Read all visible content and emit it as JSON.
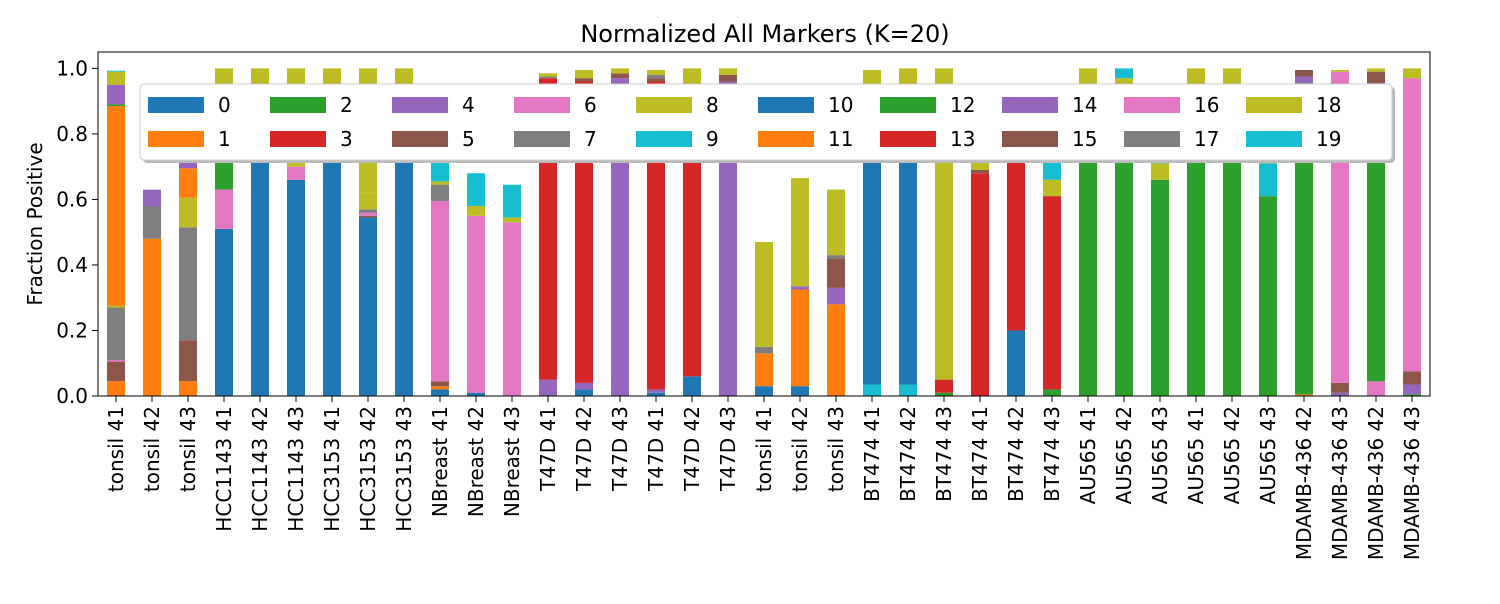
{
  "chart_data": {
    "type": "bar",
    "stacked": true,
    "title": "Normalized All Markers (K=20)",
    "xlabel": "",
    "ylabel": "Fraction Positive",
    "ylim": [
      0,
      1.05
    ],
    "yticks": [
      "0.0",
      "0.2",
      "0.4",
      "0.6",
      "0.8",
      "1.0"
    ],
    "grid": false,
    "legend": {
      "placement": "top-center",
      "columns": 10
    },
    "categories": [
      "tonsil 41",
      "tonsil 42",
      "tonsil 43",
      "HCC1143 41",
      "HCC1143 42",
      "HCC1143 43",
      "HCC3153 41",
      "HCC3153 42",
      "HCC3153 43",
      "NBreast 41",
      "NBreast 42",
      "NBreast 43",
      "T47D 41",
      "T47D 42",
      "T47D 43",
      "T47D 41",
      "T47D 42",
      "T47D 43",
      "tonsil 41",
      "tonsil 42",
      "tonsil 43",
      "BT474 41",
      "BT474 42",
      "BT474 43",
      "BT474 41",
      "BT474 42",
      "BT474 43",
      "AU565 41",
      "AU565 42",
      "AU565 43",
      "AU565 41",
      "AU565 42",
      "AU565 43",
      "MDAMB-436 42",
      "MDAMB-436 43",
      "MDAMB-436 42",
      "MDAMB-436 43"
    ],
    "series": [
      {
        "name": "0",
        "color": "#1f77b4",
        "values": [
          0,
          0,
          0,
          0.51,
          0.95,
          0.66,
          0.95,
          0.545,
          0.95,
          0.02,
          0.01,
          0,
          0,
          0.02,
          0,
          0.01,
          0.06,
          0,
          0,
          0,
          0,
          0,
          0,
          0,
          0,
          0,
          0,
          0,
          0,
          0,
          0,
          0,
          0,
          0,
          0,
          0,
          0
        ]
      },
      {
        "name": "1",
        "color": "#ff7f0e",
        "values": [
          0.045,
          0.48,
          0.045,
          0,
          0,
          0,
          0,
          0,
          0,
          0.01,
          0,
          0,
          0,
          0,
          0,
          0,
          0,
          0,
          0,
          0,
          0.28,
          0,
          0,
          0,
          0,
          0,
          0,
          0,
          0,
          0,
          0,
          0,
          0,
          0.005,
          0,
          0,
          0
        ]
      },
      {
        "name": "2",
        "color": "#2ca02c",
        "values": [
          0,
          0,
          0,
          0,
          0,
          0,
          0,
          0,
          0,
          0,
          0,
          0,
          0,
          0,
          0,
          0,
          0,
          0,
          0,
          0,
          0,
          0,
          0,
          0.01,
          0,
          0,
          0.02,
          0.95,
          0.95,
          0.66,
          0.95,
          0.95,
          0.61,
          0.95,
          0,
          0,
          0
        ]
      },
      {
        "name": "3",
        "color": "#d62728",
        "values": [
          0,
          0,
          0,
          0,
          0,
          0,
          0,
          0,
          0,
          0,
          0,
          0,
          0,
          0,
          0,
          0,
          0,
          0,
          0,
          0,
          0,
          0,
          0,
          0,
          0,
          0,
          0,
          0,
          0,
          0,
          0,
          0,
          0,
          0,
          0,
          0,
          0
        ]
      },
      {
        "name": "4",
        "color": "#9467bd",
        "values": [
          0,
          0,
          0,
          0,
          0,
          0,
          0,
          0,
          0,
          0,
          0,
          0,
          0.05,
          0.02,
          0.95,
          0.01,
          0,
          0.95,
          0,
          0,
          0,
          0,
          0,
          0,
          0,
          0,
          0,
          0,
          0,
          0,
          0,
          0,
          0,
          0,
          0,
          0,
          0
        ]
      },
      {
        "name": "5",
        "color": "#8c564b",
        "values": [
          0.06,
          0,
          0.125,
          0,
          0,
          0,
          0,
          0.005,
          0,
          0.015,
          0,
          0,
          0,
          0,
          0,
          0,
          0,
          0,
          0,
          0,
          0,
          0,
          0,
          0,
          0,
          0,
          0,
          0,
          0,
          0,
          0,
          0,
          0,
          0,
          0,
          0,
          0
        ]
      },
      {
        "name": "6",
        "color": "#e377c2",
        "values": [
          0.005,
          0,
          0,
          0.12,
          0,
          0.04,
          0,
          0.01,
          0,
          0.55,
          0.54,
          0.53,
          0,
          0,
          0,
          0,
          0,
          0,
          0,
          0,
          0,
          0,
          0,
          0,
          0,
          0,
          0,
          0,
          0,
          0,
          0,
          0,
          0,
          0,
          0,
          0.045,
          0
        ]
      },
      {
        "name": "7",
        "color": "#7f7f7f",
        "values": [
          0.16,
          0.1,
          0.345,
          0,
          0,
          0,
          0,
          0.01,
          0,
          0.05,
          0,
          0,
          0,
          0,
          0,
          0,
          0,
          0,
          0,
          0,
          0,
          0,
          0,
          0,
          0,
          0,
          0,
          0,
          0,
          0,
          0,
          0,
          0,
          0,
          0,
          0,
          0
        ]
      },
      {
        "name": "8",
        "color": "#bcbd22",
        "values": [
          0.005,
          0,
          0.09,
          0,
          0,
          0,
          0,
          0.05,
          0,
          0.01,
          0.03,
          0.015,
          0,
          0,
          0,
          0,
          0,
          0,
          0,
          0,
          0,
          0,
          0,
          0,
          0,
          0,
          0,
          0,
          0,
          0,
          0,
          0,
          0,
          0,
          0,
          0,
          0
        ]
      },
      {
        "name": "9",
        "color": "#17becf",
        "values": [
          0,
          0,
          0,
          0,
          0,
          0,
          0,
          0,
          0,
          0.1,
          0.1,
          0.1,
          0,
          0,
          0,
          0,
          0,
          0,
          0,
          0,
          0,
          0.035,
          0.035,
          0,
          0,
          0,
          0,
          0,
          0,
          0,
          0,
          0,
          0.1,
          0,
          0,
          0,
          0
        ]
      },
      {
        "name": "10",
        "color": "#1f77b4",
        "values": [
          0,
          0,
          0,
          0,
          0,
          0,
          0,
          0,
          0,
          0,
          0,
          0,
          0,
          0,
          0,
          0,
          0,
          0,
          0.03,
          0.03,
          0,
          0.86,
          0.87,
          0,
          0,
          0.2,
          0,
          0,
          0,
          0,
          0,
          0,
          0,
          0,
          0,
          0,
          0
        ]
      },
      {
        "name": "11",
        "color": "#ff7f0e",
        "values": [
          0.61,
          0,
          0.09,
          0,
          0,
          0,
          0,
          0,
          0,
          0,
          0,
          0,
          0,
          0,
          0,
          0,
          0,
          0,
          0.1,
          0.295,
          0,
          0,
          0,
          0,
          0,
          0,
          0,
          0,
          0,
          0,
          0,
          0,
          0,
          0,
          0,
          0,
          0
        ]
      },
      {
        "name": "12",
        "color": "#2ca02c",
        "values": [
          0.005,
          0,
          0,
          0.09,
          0,
          0,
          0,
          0,
          0,
          0,
          0,
          0,
          0,
          0,
          0,
          0,
          0,
          0,
          0,
          0,
          0,
          0,
          0,
          0,
          0,
          0,
          0,
          0,
          0,
          0,
          0,
          0,
          0,
          0,
          0,
          0.9,
          0.005
        ]
      },
      {
        "name": "13",
        "color": "#d62728",
        "values": [
          0,
          0,
          0,
          0,
          0,
          0,
          0,
          0,
          0,
          0,
          0,
          0,
          0.92,
          0.92,
          0,
          0.94,
          0.89,
          0,
          0,
          0,
          0,
          0.05,
          0.045,
          0.04,
          0.68,
          0.52,
          0.59,
          0,
          0,
          0,
          0,
          0,
          0,
          0,
          0,
          0,
          0
        ]
      },
      {
        "name": "14",
        "color": "#9467bd",
        "values": [
          0.06,
          0.05,
          0.04,
          0,
          0,
          0,
          0,
          0,
          0,
          0,
          0,
          0,
          0,
          0,
          0.02,
          0,
          0,
          0.01,
          0,
          0.01,
          0.05,
          0,
          0,
          0,
          0,
          0,
          0,
          0,
          0,
          0,
          0,
          0,
          0,
          0.02,
          0.01,
          0.01,
          0.03
        ]
      },
      {
        "name": "15",
        "color": "#8c564b",
        "values": [
          0,
          0,
          0,
          0,
          0,
          0,
          0,
          0,
          0,
          0,
          0,
          0,
          0,
          0.01,
          0.015,
          0.01,
          0,
          0.02,
          0,
          0,
          0.09,
          0,
          0,
          0,
          0.01,
          0.005,
          0,
          0,
          0,
          0,
          0,
          0,
          0,
          0.02,
          0.03,
          0.035,
          0.04
        ]
      },
      {
        "name": "16",
        "color": "#e377c2",
        "values": [
          0,
          0,
          0,
          0,
          0,
          0,
          0,
          0,
          0,
          0,
          0,
          0,
          0,
          0,
          0,
          0,
          0,
          0,
          0,
          0,
          0,
          0,
          0,
          0,
          0,
          0,
          0,
          0,
          0,
          0,
          0,
          0,
          0,
          0,
          0.95,
          0,
          0.895
        ]
      },
      {
        "name": "17",
        "color": "#7f7f7f",
        "values": [
          0,
          0,
          0,
          0,
          0,
          0,
          0,
          0,
          0,
          0,
          0,
          0,
          0.005,
          0,
          0,
          0.01,
          0,
          0,
          0.02,
          0,
          0.01,
          0,
          0,
          0,
          0,
          0.01,
          0,
          0,
          0,
          0,
          0,
          0,
          0,
          0,
          0,
          0,
          0
        ]
      },
      {
        "name": "18",
        "color": "#bcbd22",
        "values": [
          0.04,
          0,
          0,
          0.28,
          0.05,
          0.3,
          0.05,
          0.38,
          0.05,
          0,
          0,
          0,
          0.01,
          0.025,
          0.015,
          0.015,
          0.05,
          0.02,
          0.32,
          0.33,
          0.2,
          0.05,
          0.05,
          0.95,
          0.03,
          0.03,
          0.05,
          0.05,
          0.02,
          0.05,
          0.05,
          0.05,
          0.05,
          0,
          0.005,
          0.01,
          0.03
        ]
      },
      {
        "name": "19",
        "color": "#17becf",
        "values": [
          0.003,
          0,
          0.01,
          0,
          0,
          0,
          0,
          0,
          0,
          0,
          0,
          0,
          0,
          0,
          0,
          0,
          0,
          0,
          0,
          0,
          0,
          0,
          0,
          0,
          0.03,
          0,
          0.09,
          0,
          0.03,
          0.2,
          0,
          0,
          0.18,
          0,
          0,
          0,
          0
        ]
      }
    ]
  }
}
